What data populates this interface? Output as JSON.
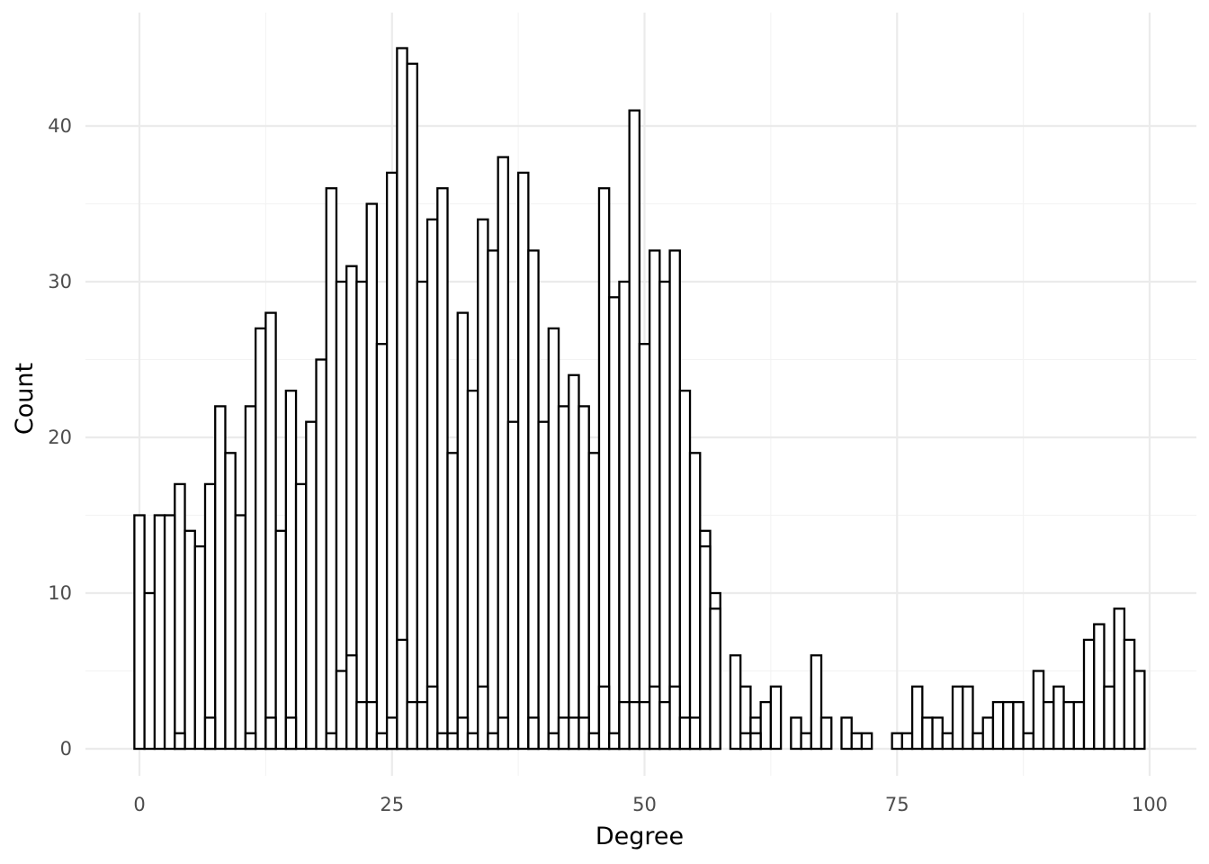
{
  "chart_data": {
    "type": "bar",
    "title": "",
    "xlabel": "Degree",
    "ylabel": "Count",
    "xlim": [
      -0.5,
      99.5
    ],
    "ylim": [
      0,
      45
    ],
    "x_ticks": [
      "0",
      "25",
      "50",
      "75",
      "100"
    ],
    "x_tick_values": [
      0,
      25,
      50,
      75,
      100
    ],
    "y_ticks": [
      "0",
      "10",
      "20",
      "30",
      "40"
    ],
    "y_tick_values": [
      0,
      10,
      20,
      30,
      40
    ],
    "grid": true,
    "bar_fill": "#ffffff",
    "bar_stroke": "#000000",
    "bin_width": 1,
    "series": [
      {
        "x": [
          0,
          1,
          2,
          3,
          4,
          5,
          6,
          7,
          8,
          9,
          10,
          11,
          12,
          13,
          14,
          15,
          16,
          17,
          18,
          19,
          20,
          21,
          22,
          23,
          24,
          25,
          26,
          27,
          28,
          29,
          30,
          31,
          32,
          33,
          34,
          35,
          36,
          37,
          38,
          39,
          40,
          41,
          42,
          43,
          44,
          45,
          46,
          47,
          48,
          49,
          50,
          51,
          52,
          53,
          54,
          55,
          56,
          57,
          58,
          59,
          60,
          61,
          62,
          63,
          64,
          65,
          66,
          67,
          68,
          69,
          70,
          71,
          72,
          73,
          74,
          75,
          76,
          77,
          78,
          79,
          80,
          81,
          82,
          83,
          84,
          85,
          86,
          87,
          88,
          89,
          90,
          91,
          92,
          93,
          94,
          95,
          96,
          97,
          98,
          99
        ],
        "values": [
          15,
          0,
          15,
          0,
          17,
          14,
          13,
          17,
          22,
          19,
          15,
          22,
          27,
          28,
          14,
          23,
          17,
          21,
          25,
          36,
          30,
          31,
          30,
          35,
          26,
          37,
          45,
          44,
          30,
          34,
          36,
          19,
          28,
          23,
          34,
          32,
          38,
          21,
          37,
          32,
          21,
          27,
          22,
          24,
          22,
          19,
          36,
          29,
          30,
          41,
          26,
          32,
          30,
          32,
          23,
          19,
          14,
          10,
          0,
          6,
          4,
          2,
          3,
          4,
          0,
          2,
          1,
          6,
          2,
          0,
          2,
          1,
          1,
          0,
          0,
          1,
          1,
          4,
          2,
          2,
          1,
          4,
          4,
          1,
          2,
          3,
          3,
          3,
          1,
          5,
          3,
          4,
          3,
          3,
          7,
          8,
          4,
          9,
          7,
          5
        ]
      },
      {
        "x": [
          0,
          1,
          2,
          3,
          4,
          5,
          6,
          7,
          8,
          9,
          10,
          11,
          12,
          13,
          14,
          15,
          16,
          17,
          18,
          19,
          20,
          21,
          22,
          23,
          24,
          25,
          26,
          27,
          28,
          29,
          30,
          31,
          32,
          33,
          34,
          35,
          36,
          37,
          38,
          39,
          40,
          41,
          42,
          43,
          44,
          45,
          46,
          47,
          48,
          49,
          50,
          51,
          52,
          53,
          54,
          55,
          56,
          57,
          58,
          59,
          60,
          61,
          62,
          63,
          64,
          65,
          66,
          67,
          68,
          69,
          70,
          71,
          72,
          73,
          74,
          75,
          76,
          77,
          78,
          79,
          80,
          81,
          82,
          83,
          84,
          85,
          86,
          87,
          88,
          89,
          90,
          91,
          92,
          93,
          94,
          95,
          96,
          97,
          98,
          99
        ],
        "values": [
          0,
          10,
          0,
          15,
          1,
          0,
          0,
          2,
          0,
          0,
          0,
          1,
          0,
          2,
          0,
          2,
          0,
          0,
          0,
          1,
          5,
          6,
          3,
          3,
          1,
          2,
          7,
          3,
          3,
          4,
          1,
          1,
          2,
          1,
          4,
          1,
          2,
          0,
          0,
          2,
          0,
          1,
          2,
          2,
          2,
          1,
          4,
          1,
          3,
          3,
          3,
          4,
          3,
          4,
          2,
          2,
          13,
          9,
          0,
          0,
          1,
          1,
          0,
          0,
          0,
          0,
          0,
          0,
          0,
          0,
          0,
          0,
          0,
          0,
          0,
          0,
          0,
          0,
          0,
          0,
          0,
          0,
          0,
          0,
          0,
          0,
          0,
          0,
          0,
          0,
          0,
          0,
          0,
          0,
          0,
          0,
          0,
          0,
          0,
          0
        ]
      }
    ]
  }
}
